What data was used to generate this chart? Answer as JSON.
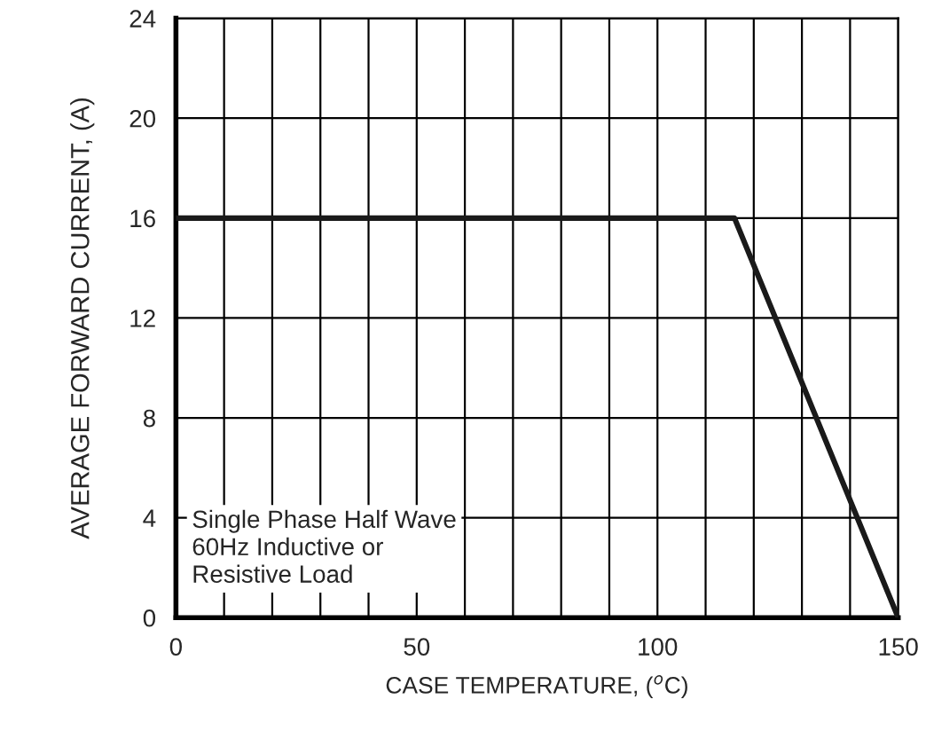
{
  "chart_data": {
    "type": "line",
    "xlabel": "CASE TEMPERATURE, ($^{o}$C)",
    "ylabel": "AVERAGE FORWARD CURRENT, (A)",
    "x": [
      0,
      116,
      150
    ],
    "series": [
      {
        "color": "#1a1a1a",
        "values": [
          16,
          16,
          0
        ]
      }
    ],
    "xlim": [
      0,
      150
    ],
    "ylim": [
      0,
      24
    ],
    "xticks": [
      0,
      {
        "value": 10,
        "label": null
      },
      {
        "value": 20,
        "label": null
      },
      {
        "value": 30,
        "label": null
      },
      {
        "value": 40,
        "label": null
      },
      50,
      {
        "value": 60,
        "label": null
      },
      {
        "value": 70,
        "label": null
      },
      {
        "value": 80,
        "label": null
      },
      {
        "value": 90,
        "label": null
      },
      100,
      {
        "value": 110,
        "label": null
      },
      {
        "value": 120,
        "label": null
      },
      {
        "value": 130,
        "label": null
      },
      {
        "value": 140,
        "label": null
      },
      150
    ],
    "yticks": [
      0,
      4,
      8,
      12,
      16,
      20,
      24
    ],
    "grid": true,
    "marker": "none",
    "line_style": "solid",
    "annotations": [
      "Single Phase Half Wave\n60Hz Inductive or\nResistive Load"
    ]
  }
}
